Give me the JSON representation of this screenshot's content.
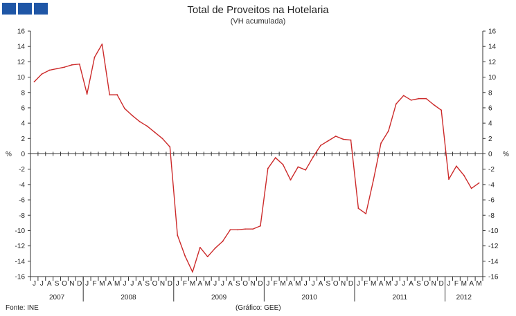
{
  "header": {
    "title": "Total de Proveitos na Hotelaria",
    "subtitle": "(VH acumulada)"
  },
  "logo": {
    "icon": "gee-logo-icon",
    "color": "#1f56a6",
    "squares": 3
  },
  "footer": {
    "source": "Fonte: INE",
    "credit": "(Gráfico: GEE)"
  },
  "chart_data": {
    "type": "line",
    "title": "Total de Proveitos na Hotelaria",
    "subtitle": "(VH acumulada)",
    "y_unit": "%",
    "ylim": [
      -16,
      16
    ],
    "yticks": [
      16,
      14,
      12,
      10,
      8,
      6,
      4,
      2,
      0,
      -2,
      -4,
      -6,
      -8,
      -10,
      -12,
      -14,
      -16
    ],
    "dual_y_axis": true,
    "grid": false,
    "line_color": "#cc2a2a",
    "month_labels": [
      "J",
      "J",
      "A",
      "S",
      "O",
      "N",
      "D",
      "J",
      "F",
      "M",
      "A",
      "M",
      "J",
      "J",
      "A",
      "S",
      "O",
      "N",
      "D",
      "J",
      "F",
      "M",
      "A",
      "M",
      "J",
      "J",
      "A",
      "S",
      "O",
      "N",
      "D",
      "J",
      "F",
      "M",
      "A",
      "M",
      "J",
      "J",
      "A",
      "S",
      "O",
      "N",
      "D",
      "J",
      "F",
      "M",
      "A",
      "M",
      "J",
      "J",
      "A",
      "S",
      "O",
      "N",
      "D",
      "J",
      "F",
      "M",
      "A",
      "M"
    ],
    "year_groups": [
      {
        "label": "2007",
        "months": 7
      },
      {
        "label": "2008",
        "months": 12
      },
      {
        "label": "2009",
        "months": 12
      },
      {
        "label": "2010",
        "months": 12
      },
      {
        "label": "2011",
        "months": 12
      },
      {
        "label": "2012",
        "months": 5
      }
    ],
    "series": [
      {
        "values": [
          9.4,
          10.4,
          10.9,
          11.1,
          11.3,
          11.6,
          11.7,
          7.8,
          12.6,
          14.3,
          7.7,
          7.7,
          5.9,
          5.0,
          4.2,
          3.6,
          2.8,
          2.0,
          0.9,
          -10.6,
          -13.3,
          -15.4,
          -12.2,
          -13.4,
          -12.3,
          -11.4,
          -9.9,
          -9.9,
          -9.8,
          -9.8,
          -9.4,
          -1.9,
          -0.5,
          -1.4,
          -3.4,
          -1.7,
          -2.1,
          -0.4,
          1.1,
          1.7,
          2.3,
          1.9,
          1.8,
          -7.1,
          -7.8,
          -3.4,
          1.4,
          3.0,
          6.5,
          7.6,
          7.0,
          7.2,
          7.2,
          6.4,
          5.7,
          -3.3,
          -1.6,
          -2.8,
          -4.5,
          -3.8
        ]
      }
    ]
  }
}
